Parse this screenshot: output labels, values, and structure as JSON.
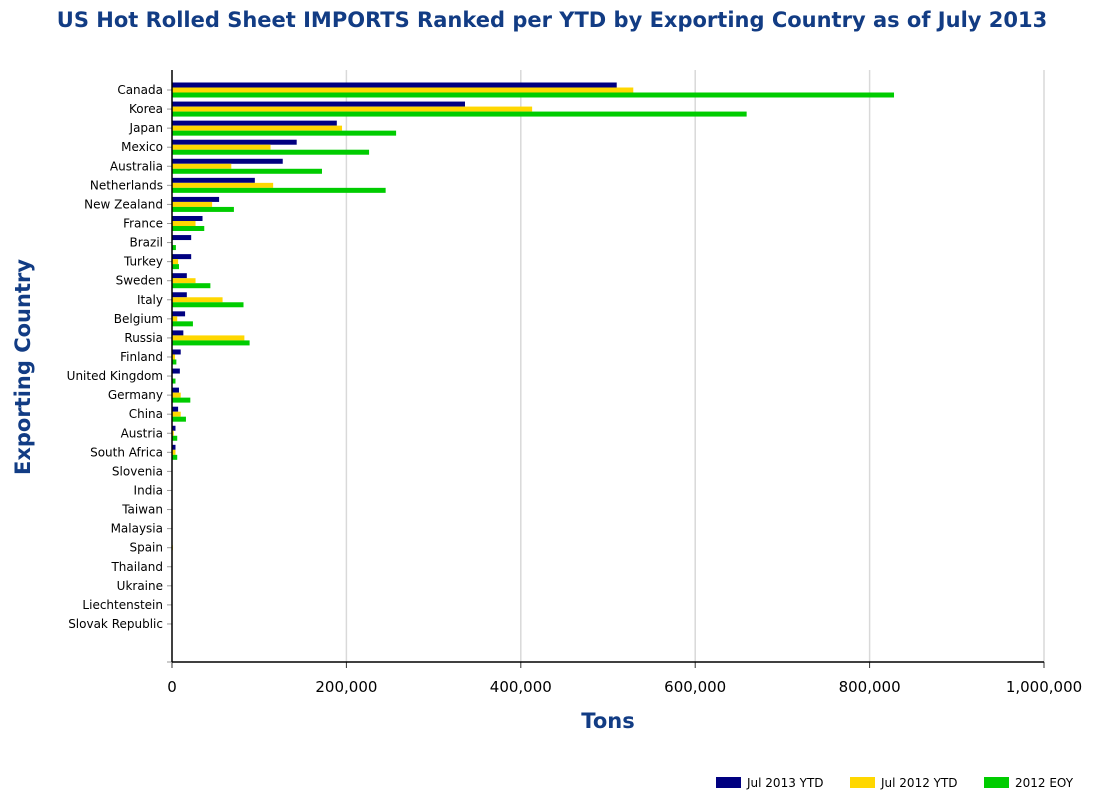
{
  "chart_data": {
    "type": "bar",
    "orientation": "horizontal",
    "title": "US Hot Rolled Sheet IMPORTS Ranked per YTD by Exporting Country as of July 2013",
    "xlabel": "Tons",
    "ylabel": "Exporting Country",
    "xlim": [
      0,
      1000000
    ],
    "xticks": [
      "0",
      "200,000",
      "400,000",
      "600,000",
      "800,000",
      "1,000,000"
    ],
    "grid": true,
    "legend": "bottom-right",
    "categories": [
      "Canada",
      "Korea",
      "Japan",
      "Mexico",
      "Australia",
      "Netherlands",
      "New Zealand",
      "France",
      "Brazil",
      "Turkey",
      "Sweden",
      "Italy",
      "Belgium",
      "Russia",
      "Finland",
      "United Kingdom",
      "Germany",
      "China",
      "Austria",
      "South Africa",
      "Slovenia",
      "India",
      "Taiwan",
      "Malaysia",
      "Spain",
      "Thailand",
      "Ukraine",
      "Liechtenstein",
      "Slovak Republic"
    ],
    "series": [
      {
        "name": "Jul 2013 YTD",
        "color": "#000080",
        "values": [
          510000,
          336000,
          189000,
          143000,
          127000,
          95000,
          54000,
          35000,
          22000,
          22000,
          17000,
          17000,
          15000,
          13000,
          10000,
          9000,
          8000,
          7000,
          4000,
          4000,
          0,
          0,
          0,
          0,
          0,
          0,
          0,
          0,
          0
        ]
      },
      {
        "name": "Jul 2012 YTD",
        "color": "#ffd700",
        "values": [
          529000,
          413000,
          195000,
          113000,
          68000,
          116000,
          46000,
          27000,
          0,
          7000,
          27000,
          58000,
          6000,
          83000,
          3500,
          0,
          10000,
          10000,
          2000,
          4000,
          0,
          0,
          0,
          0,
          1000,
          0,
          0,
          0,
          0
        ]
      },
      {
        "name": "2012 EOY",
        "color": "#00cc00",
        "values": [
          828000,
          659000,
          257000,
          226000,
          172000,
          245000,
          71000,
          37000,
          4500,
          8000,
          44000,
          82000,
          24000,
          89000,
          5000,
          4000,
          21000,
          16000,
          6000,
          6000,
          0,
          0,
          0,
          0,
          500,
          0,
          0,
          0,
          0
        ]
      }
    ]
  }
}
